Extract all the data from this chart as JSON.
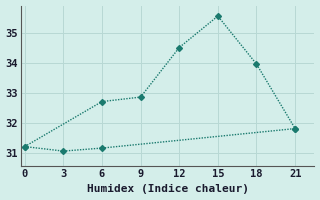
{
  "line1_x": [
    0,
    6,
    9,
    12,
    15,
    18,
    21
  ],
  "line1_y": [
    31.2,
    32.7,
    32.85,
    34.5,
    35.55,
    33.95,
    31.8
  ],
  "line2_x": [
    0,
    3,
    6,
    21
  ],
  "line2_y": [
    31.2,
    31.05,
    31.15,
    31.8
  ],
  "line_color": "#1a7a6e",
  "bg_color": "#d4eeea",
  "grid_color": "#b8d8d4",
  "xlabel": "Humidex (Indice chaleur)",
  "xlim": [
    -0.3,
    22.5
  ],
  "ylim": [
    30.55,
    35.9
  ],
  "xticks": [
    0,
    3,
    6,
    9,
    12,
    15,
    18,
    21
  ],
  "yticks": [
    31,
    32,
    33,
    34,
    35
  ],
  "xlabel_fontsize": 8,
  "tick_fontsize": 7.5,
  "linewidth": 1.0,
  "markersize": 3.0
}
